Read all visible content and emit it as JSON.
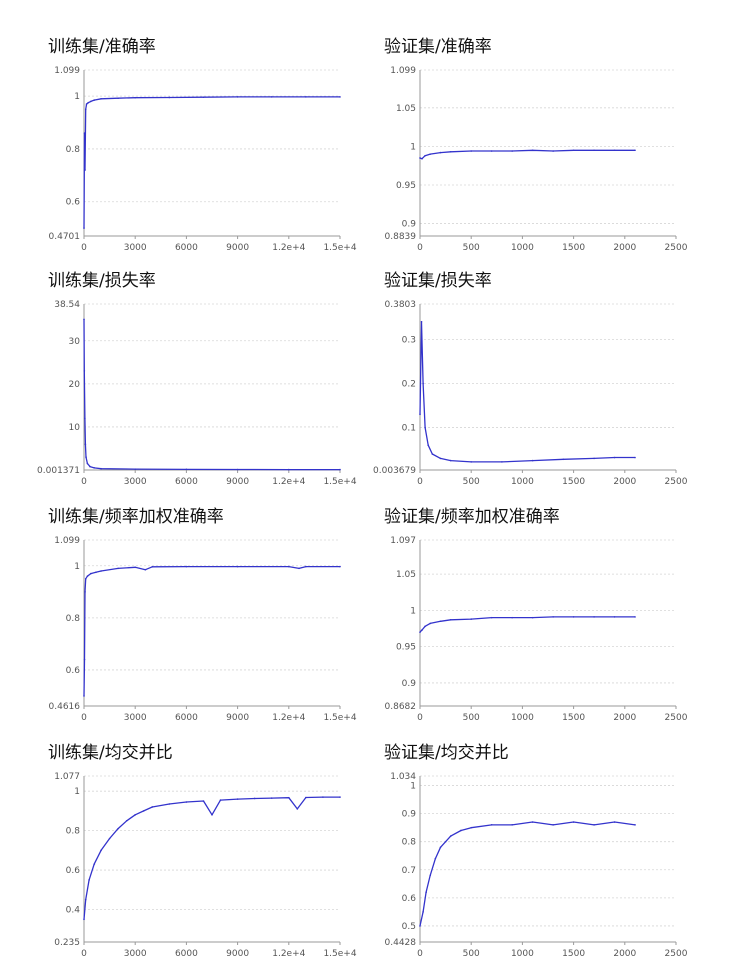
{
  "colors": {
    "series": "#3333cc",
    "grid": "#d6d6d6",
    "axis": "#9a9a9a",
    "text": "#111111"
  },
  "chart_data": [
    {
      "type": "line",
      "title": "训练集/准确率",
      "ylim": [
        0.4701,
        1.099
      ],
      "xlim": [
        0,
        15000
      ],
      "yticks": [
        "1.099",
        "1",
        "0.8",
        "0.6",
        "0.4701"
      ],
      "xticks": [
        "0",
        "3000",
        "6000",
        "9000",
        "1.2e+4",
        "1.5e+4"
      ],
      "x": [
        0,
        30,
        60,
        100,
        150,
        250,
        400,
        600,
        1000,
        2000,
        3000,
        5000,
        7000,
        9000,
        11000,
        13000,
        15000
      ],
      "y": [
        0.5,
        0.86,
        0.72,
        0.95,
        0.97,
        0.975,
        0.98,
        0.985,
        0.99,
        0.992,
        0.994,
        0.995,
        0.996,
        0.997,
        0.997,
        0.997,
        0.997
      ]
    },
    {
      "type": "line",
      "title": "验证集/准确率",
      "ylim": [
        0.8839,
        1.099
      ],
      "xlim": [
        0,
        2500
      ],
      "yticks": [
        "1.099",
        "1.05",
        "1",
        "0.95",
        "0.9",
        "0.8839"
      ],
      "xticks": [
        "0",
        "500",
        "1000",
        "1500",
        "2000",
        "2500"
      ],
      "x": [
        0,
        20,
        50,
        100,
        200,
        300,
        500,
        700,
        900,
        1100,
        1300,
        1500,
        1700,
        1900,
        2100
      ],
      "y": [
        0.985,
        0.984,
        0.988,
        0.99,
        0.992,
        0.993,
        0.994,
        0.994,
        0.994,
        0.995,
        0.994,
        0.995,
        0.995,
        0.995,
        0.995
      ]
    },
    {
      "type": "line",
      "title": "训练集/损失率",
      "ylim": [
        0.001371,
        38.54
      ],
      "xlim": [
        0,
        15000
      ],
      "yticks": [
        "38.54",
        "30",
        "20",
        "10",
        "0.001371"
      ],
      "xticks": [
        "0",
        "3000",
        "6000",
        "9000",
        "1.2e+4",
        "1.5e+4"
      ],
      "x": [
        0,
        20,
        50,
        80,
        120,
        200,
        350,
        600,
        1000,
        3000,
        6000,
        9000,
        12000,
        15000
      ],
      "y": [
        35,
        23,
        12,
        6,
        3,
        1.5,
        0.8,
        0.5,
        0.3,
        0.2,
        0.15,
        0.12,
        0.1,
        0.1
      ]
    },
    {
      "type": "line",
      "title": "验证集/损失率",
      "ylim": [
        0.003679,
        0.3803
      ],
      "xlim": [
        0,
        2500
      ],
      "yticks": [
        "0.3803",
        "0.3",
        "0.2",
        "0.1",
        "0.003679"
      ],
      "xticks": [
        "0",
        "500",
        "1000",
        "1500",
        "2000",
        "2500"
      ],
      "x": [
        0,
        15,
        30,
        50,
        80,
        120,
        200,
        300,
        500,
        800,
        1100,
        1400,
        1700,
        1900,
        2100
      ],
      "y": [
        0.13,
        0.34,
        0.2,
        0.1,
        0.06,
        0.04,
        0.03,
        0.025,
        0.022,
        0.022,
        0.025,
        0.028,
        0.03,
        0.032,
        0.032
      ]
    },
    {
      "type": "line",
      "title": "训练集/频率加权准确率",
      "ylim": [
        0.4616,
        1.099
      ],
      "xlim": [
        0,
        15000
      ],
      "yticks": [
        "1.099",
        "1",
        "0.8",
        "0.6",
        "0.4616"
      ],
      "xticks": [
        "0",
        "3000",
        "6000",
        "9000",
        "1.2e+4",
        "1.5e+4"
      ],
      "x": [
        0,
        30,
        60,
        100,
        200,
        400,
        700,
        1000,
        2000,
        3000,
        3600,
        4000,
        6000,
        9000,
        12000,
        12600,
        13000,
        15000
      ],
      "y": [
        0.5,
        0.64,
        0.9,
        0.95,
        0.96,
        0.97,
        0.975,
        0.98,
        0.99,
        0.994,
        0.985,
        0.996,
        0.997,
        0.997,
        0.997,
        0.99,
        0.997,
        0.997
      ]
    },
    {
      "type": "line",
      "title": "验证集/频率加权准确率",
      "ylim": [
        0.8682,
        1.097
      ],
      "xlim": [
        0,
        2500
      ],
      "yticks": [
        "1.097",
        "1.05",
        "1",
        "0.95",
        "0.9",
        "0.8682"
      ],
      "xticks": [
        "0",
        "500",
        "1000",
        "1500",
        "2000",
        "2500"
      ],
      "x": [
        0,
        20,
        50,
        100,
        200,
        300,
        500,
        700,
        900,
        1100,
        1300,
        1500,
        1700,
        1900,
        2100
      ],
      "y": [
        0.97,
        0.973,
        0.978,
        0.982,
        0.985,
        0.987,
        0.988,
        0.99,
        0.99,
        0.99,
        0.991,
        0.991,
        0.991,
        0.991,
        0.991
      ]
    },
    {
      "type": "line",
      "title": "训练集/均交并比",
      "ylim": [
        0.235,
        1.077
      ],
      "xlim": [
        0,
        15000
      ],
      "yticks": [
        "1.077",
        "1",
        "0.8",
        "0.6",
        "0.4",
        "0.235"
      ],
      "xticks": [
        "0",
        "3000",
        "6000",
        "9000",
        "1.2e+4",
        "1.5e+4"
      ],
      "x": [
        0,
        100,
        300,
        600,
        1000,
        1500,
        2000,
        2500,
        3000,
        3500,
        4000,
        5000,
        6000,
        7000,
        7500,
        8000,
        9000,
        10000,
        11000,
        12000,
        12500,
        13000,
        14000,
        15000
      ],
      "y": [
        0.35,
        0.45,
        0.55,
        0.63,
        0.7,
        0.76,
        0.81,
        0.85,
        0.88,
        0.9,
        0.92,
        0.935,
        0.945,
        0.95,
        0.88,
        0.955,
        0.96,
        0.963,
        0.965,
        0.967,
        0.91,
        0.968,
        0.97,
        0.97
      ]
    },
    {
      "type": "line",
      "title": "验证集/均交并比",
      "ylim": [
        0.4428,
        1.034
      ],
      "xlim": [
        0,
        2500
      ],
      "yticks": [
        "1.034",
        "1",
        "0.9",
        "0.8",
        "0.7",
        "0.6",
        "0.5",
        "0.4428"
      ],
      "xticks": [
        "0",
        "500",
        "1000",
        "1500",
        "2000",
        "2500"
      ],
      "x": [
        0,
        30,
        60,
        100,
        150,
        200,
        250,
        300,
        400,
        500,
        700,
        900,
        1100,
        1300,
        1500,
        1700,
        1900,
        2100
      ],
      "y": [
        0.5,
        0.55,
        0.62,
        0.68,
        0.74,
        0.78,
        0.8,
        0.82,
        0.84,
        0.85,
        0.86,
        0.86,
        0.87,
        0.86,
        0.87,
        0.86,
        0.87,
        0.86
      ]
    }
  ]
}
